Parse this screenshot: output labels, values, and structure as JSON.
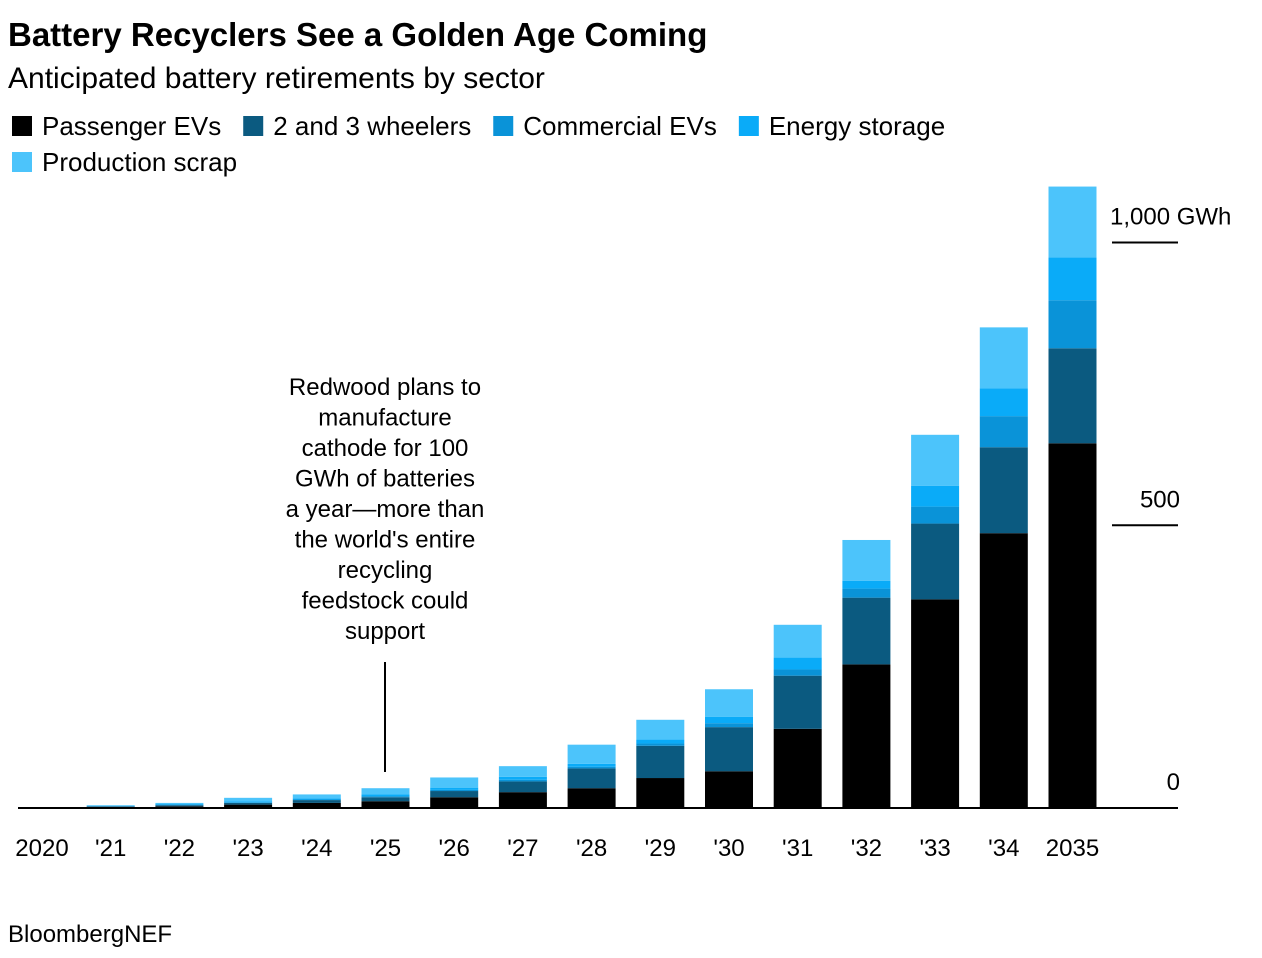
{
  "chart_data": {
    "type": "stacked-bar",
    "title": "Battery Recyclers See a Golden Age Coming",
    "subtitle": "Anticipated battery retirements by sector",
    "categories": [
      "2020",
      "'21",
      "'22",
      "'23",
      "'24",
      "'25",
      "'26",
      "'27",
      "'28",
      "'29",
      "'30",
      "'31",
      "'32",
      "'33",
      "'34",
      "2035"
    ],
    "series": [
      {
        "name": "Passenger EVs",
        "color": "#000000",
        "values": [
          0,
          2,
          3,
          6,
          9,
          12,
          19,
          28,
          35,
          53,
          65,
          140,
          254,
          369,
          486,
          645
        ]
      },
      {
        "name": "2 and 3 wheelers",
        "color": "#0b5a80",
        "values": [
          0,
          1,
          2,
          3,
          5,
          7,
          11,
          19,
          35,
          57,
          78,
          94,
          118,
          134,
          152,
          168
        ]
      },
      {
        "name": "Commercial EVs",
        "color": "#0a93d8",
        "values": [
          0,
          0.5,
          1,
          1,
          1,
          2,
          2,
          3,
          3,
          4,
          7,
          11,
          16,
          30,
          55,
          85
        ]
      },
      {
        "name": "Energy storage",
        "color": "#0aabf8",
        "values": [
          0,
          0.5,
          1,
          2,
          2,
          3,
          4,
          5,
          5,
          7,
          11,
          21,
          14,
          37,
          49,
          76
        ]
      },
      {
        "name": "Production scrap",
        "color": "#4cc4fb",
        "values": [
          0,
          1,
          2,
          6,
          7,
          11,
          18,
          19,
          34,
          35,
          49,
          58,
          72,
          90,
          108,
          125
        ]
      }
    ],
    "ylim": [
      0,
      1100
    ],
    "yticks": [
      0,
      500,
      {
        "value": 1000,
        "label": "1,000 GWh"
      }
    ],
    "annotation": [
      "Redwood plans to",
      "manufacture",
      "cathode for 100",
      "GWh of batteries",
      "a year—more than",
      "the world's entire",
      "recycling",
      "feedstock could",
      "support"
    ],
    "source": "BloombergNEF"
  }
}
